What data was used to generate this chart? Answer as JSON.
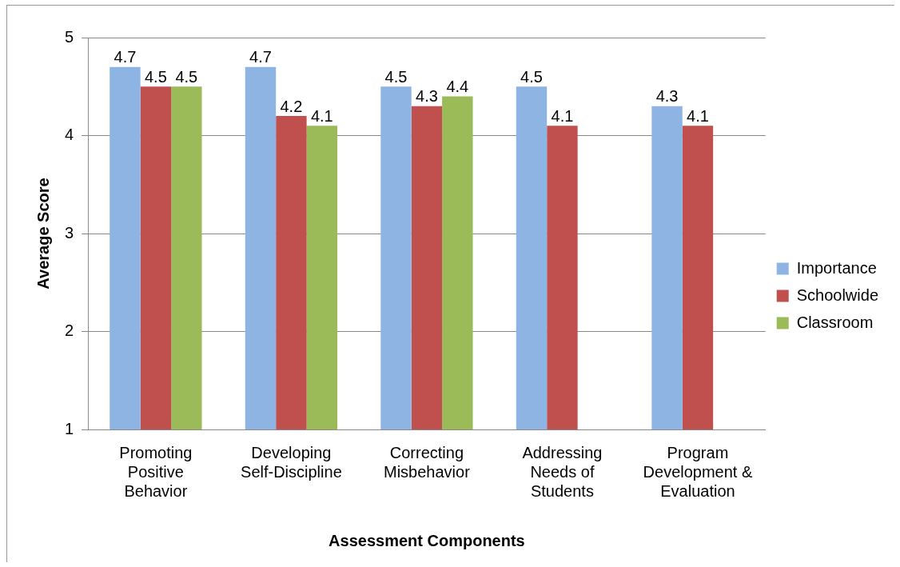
{
  "chart_data": {
    "type": "bar",
    "xlabel": "Assessment Components",
    "ylabel": "Average Score",
    "categories": [
      "Promoting Positive Behavior",
      "Developing Self-Discipline",
      "Correcting Misbehavior",
      "Addressing Needs of Students",
      "Program Development & Evaluation"
    ],
    "series": [
      {
        "name": "Importance",
        "color": "#8eb4e3",
        "values": [
          4.7,
          4.7,
          4.5,
          4.5,
          4.3
        ]
      },
      {
        "name": "Schoolwide",
        "color": "#c0504d",
        "values": [
          4.5,
          4.2,
          4.3,
          4.1,
          4.1
        ]
      },
      {
        "name": "Classroom",
        "color": "#9bbb59",
        "values": [
          4.5,
          4.1,
          4.4,
          null,
          null
        ]
      }
    ],
    "ylim": [
      1,
      5
    ],
    "yticks": [
      1,
      2,
      3,
      4,
      5
    ],
    "grid": "y",
    "legend": "right",
    "data_labels": true
  }
}
